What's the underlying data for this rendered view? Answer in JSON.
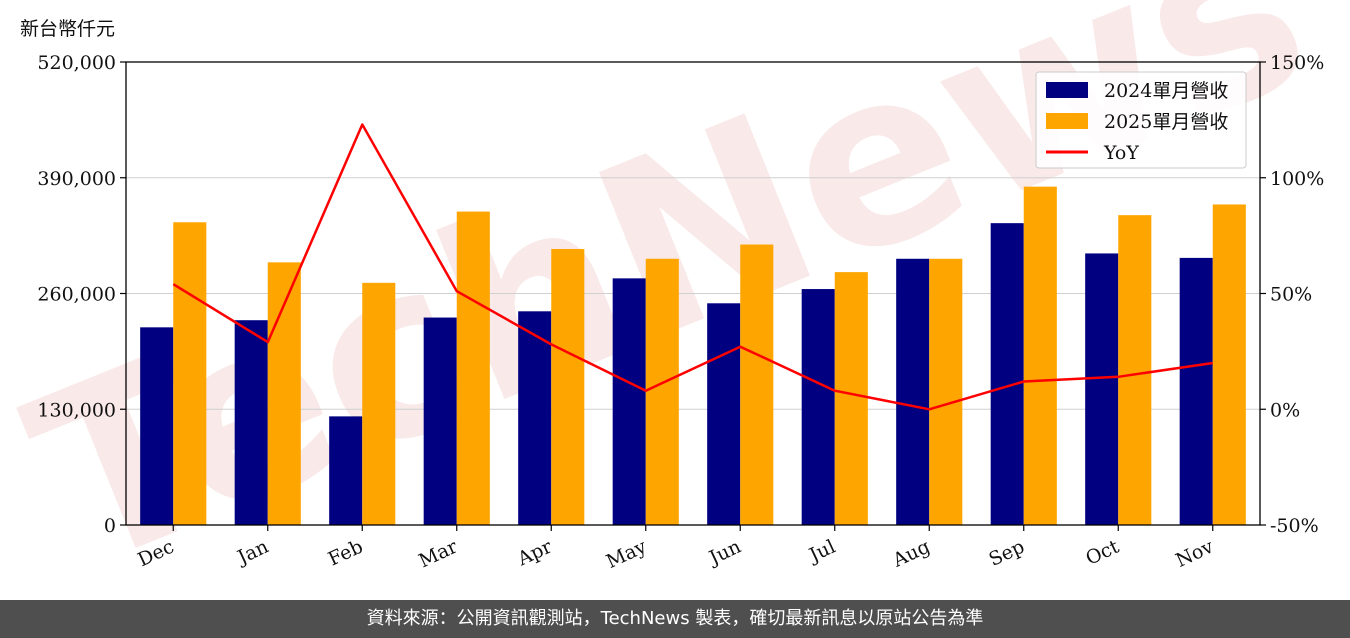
{
  "unit_label": "新台幣仟元",
  "watermark": "TechNews",
  "footer": "資料來源：公開資訊觀測站，TechNews 製表，確切最新訊息以原站公告為準",
  "colors": {
    "bar_2024": "#000080",
    "bar_2025": "#FFA500",
    "yoy_line": "#FF0000",
    "grid": "#d0d0d0",
    "watermark": "#e8a0a0"
  },
  "chart_data": {
    "type": "bar",
    "categories": [
      "Dec",
      "Jan",
      "Feb",
      "Mar",
      "Apr",
      "May",
      "Jun",
      "Jul",
      "Aug",
      "Sep",
      "Oct",
      "Nov"
    ],
    "series": [
      {
        "name": "2024單月營收",
        "type": "bar",
        "axis": "left",
        "values": [
          222000,
          230000,
          122000,
          233000,
          240000,
          277000,
          249000,
          265000,
          299000,
          339000,
          305000,
          300000
        ]
      },
      {
        "name": "2025單月營收",
        "type": "bar",
        "axis": "left",
        "values": [
          340000,
          295000,
          272000,
          352000,
          310000,
          299000,
          315000,
          284000,
          299000,
          380000,
          348000,
          360000
        ]
      },
      {
        "name": "YoY",
        "type": "line",
        "axis": "right",
        "values": [
          54,
          29,
          123,
          51,
          28,
          8,
          27,
          8,
          0,
          12,
          14,
          20
        ]
      }
    ],
    "y_left": {
      "ylim": [
        0,
        520000
      ],
      "ticks": [
        0,
        130000,
        260000,
        390000,
        520000
      ],
      "tick_labels": [
        "0",
        "130,000",
        "260,000",
        "390,000",
        "520,000"
      ]
    },
    "y_right": {
      "ylim": [
        -50,
        150
      ],
      "ticks": [
        -50,
        0,
        50,
        100,
        150
      ],
      "tick_labels": [
        "-50%",
        "0%",
        "50%",
        "100%",
        "150%"
      ]
    },
    "grid": true,
    "legend_position": "top-right"
  }
}
